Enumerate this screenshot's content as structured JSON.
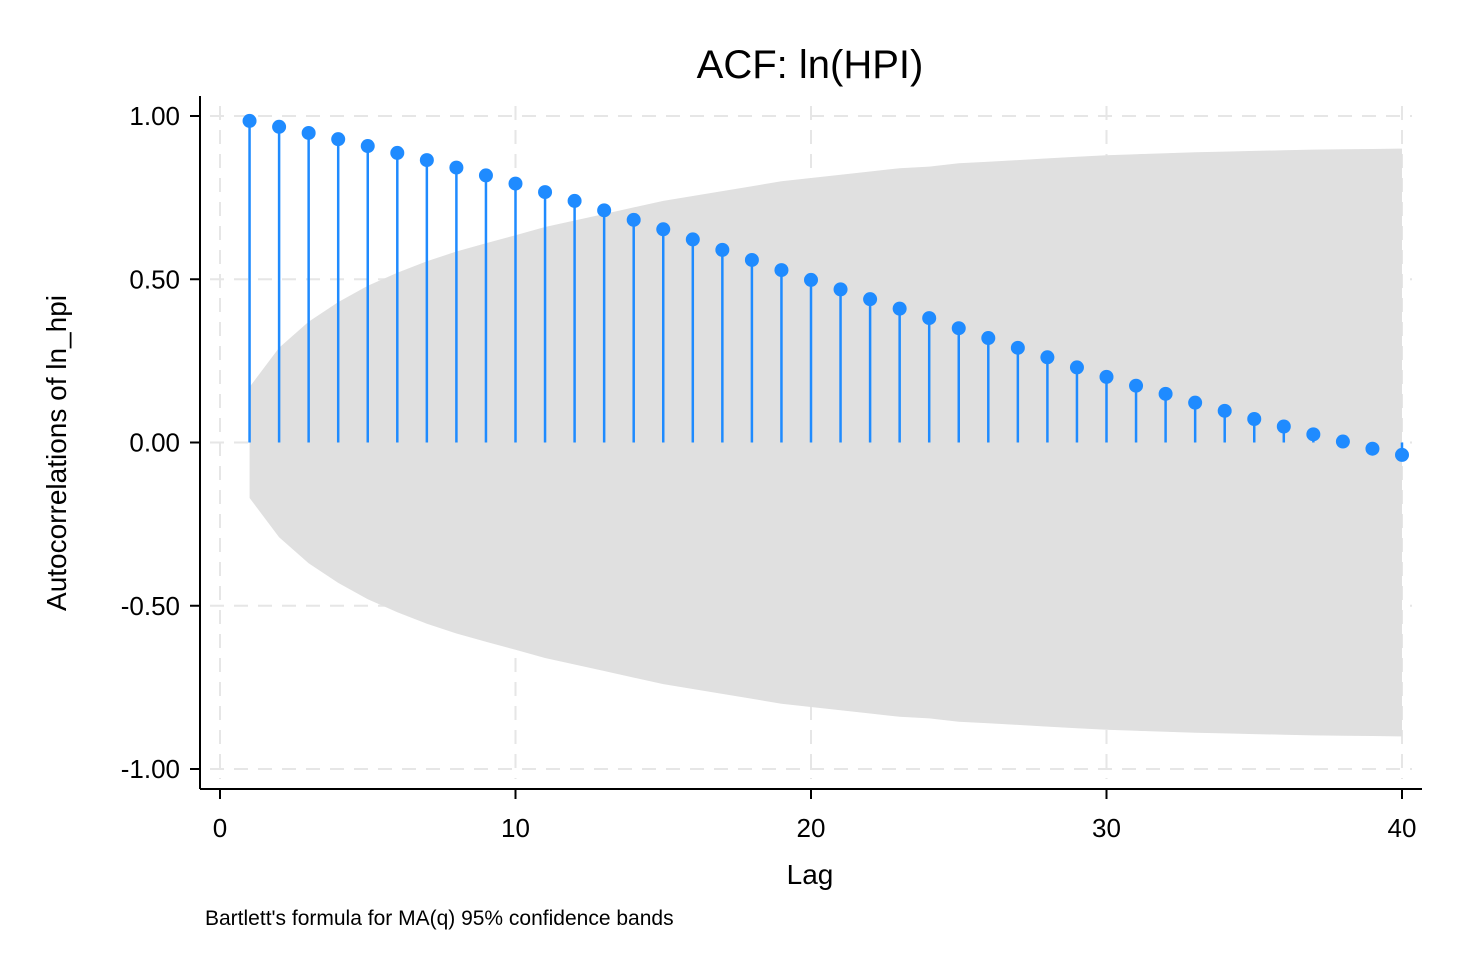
{
  "chart_data": {
    "type": "stem",
    "title": "ACF: ln(HPI)",
    "xlabel": "Lag",
    "ylabel": "Autocorrelations of ln_hpi",
    "note": "Bartlett's formula for MA(q) 95% confidence bands",
    "xlim": [
      0,
      40
    ],
    "ylim": [
      -1.0,
      1.0
    ],
    "x_ticks": [
      0,
      10,
      20,
      30,
      40
    ],
    "x_tick_labels": [
      "0",
      "10",
      "20",
      "30",
      "40"
    ],
    "y_ticks": [
      1.0,
      0.5,
      0.0,
      -0.5,
      -1.0
    ],
    "y_tick_labels": [
      "1.00",
      "0.50",
      "0.00",
      "-0.50",
      "-1.00"
    ],
    "grid": true,
    "colors": {
      "stem": "#1f8bff",
      "band": "#e0e0e0",
      "grid": "#e6e6e6"
    },
    "lags": [
      1,
      2,
      3,
      4,
      5,
      6,
      7,
      8,
      9,
      10,
      11,
      12,
      13,
      14,
      15,
      16,
      17,
      18,
      19,
      20,
      21,
      22,
      23,
      24,
      25,
      26,
      27,
      28,
      29,
      30,
      31,
      32,
      33,
      34,
      35,
      36,
      37,
      38,
      39,
      40
    ],
    "values": [
      0.985,
      0.967,
      0.948,
      0.929,
      0.908,
      0.887,
      0.865,
      0.842,
      0.818,
      0.793,
      0.767,
      0.74,
      0.711,
      0.682,
      0.653,
      0.622,
      0.59,
      0.559,
      0.528,
      0.498,
      0.469,
      0.439,
      0.41,
      0.381,
      0.35,
      0.32,
      0.29,
      0.261,
      0.23,
      0.201,
      0.174,
      0.149,
      0.122,
      0.097,
      0.072,
      0.049,
      0.025,
      0.003,
      -0.019,
      -0.038
    ],
    "confidence_band": [
      0.17,
      0.29,
      0.37,
      0.43,
      0.48,
      0.52,
      0.555,
      0.585,
      0.61,
      0.635,
      0.66,
      0.68,
      0.7,
      0.72,
      0.74,
      0.755,
      0.77,
      0.785,
      0.8,
      0.81,
      0.82,
      0.83,
      0.84,
      0.845,
      0.855,
      0.86,
      0.865,
      0.87,
      0.875,
      0.88,
      0.883,
      0.886,
      0.889,
      0.891,
      0.893,
      0.895,
      0.897,
      0.898,
      0.899,
      0.9
    ]
  }
}
